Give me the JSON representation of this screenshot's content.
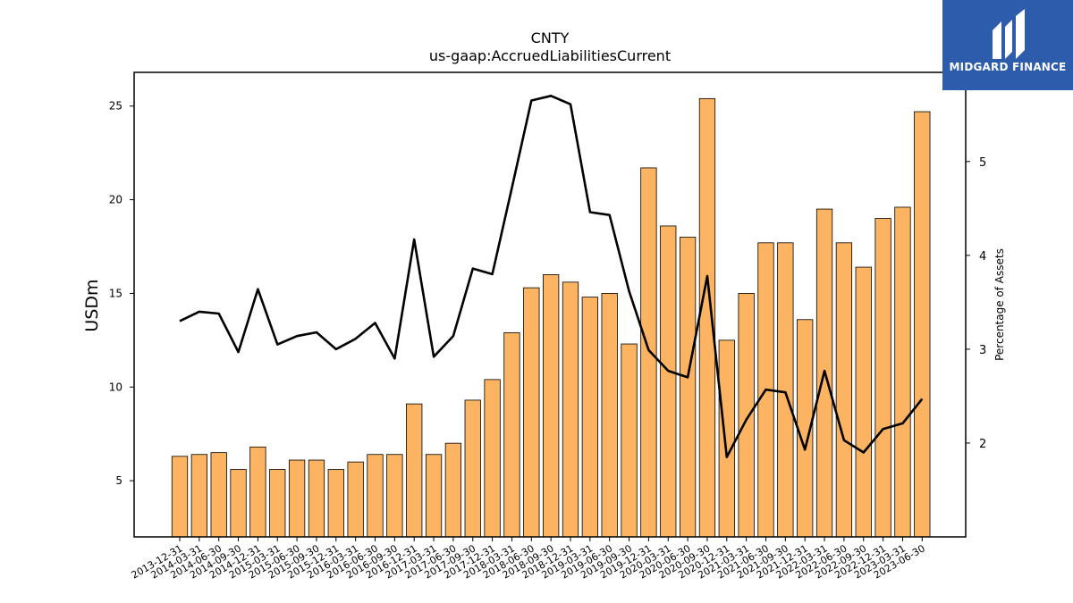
{
  "chart_data": {
    "type": "bar",
    "title": "CNTY",
    "subtitle": "us-gaap:AccruedLiabilitiesCurrent",
    "ylabel": "USDm",
    "y2label": "Percentage of Assets",
    "ylim": [
      2,
      26.8
    ],
    "y2lim": [
      1.0,
      5.95
    ],
    "yticks": [
      5,
      10,
      15,
      20,
      25
    ],
    "y2ticks": [
      2,
      3,
      4,
      5
    ],
    "bar_color": "#fdb462",
    "line_color": "#000000",
    "categories": [
      "2013-12-31",
      "2014-03-31",
      "2014-06-30",
      "2014-09-30",
      "2014-12-31",
      "2015-03-31",
      "2015-06-30",
      "2015-09-30",
      "2015-12-31",
      "2016-03-31",
      "2016-06-30",
      "2016-09-30",
      "2016-12-31",
      "2017-03-31",
      "2017-06-30",
      "2017-09-30",
      "2017-12-31",
      "2018-03-31",
      "2018-06-30",
      "2018-09-30",
      "2018-12-31",
      "2019-03-31",
      "2019-06-30",
      "2019-09-30",
      "2019-12-31",
      "2020-03-31",
      "2020-06-30",
      "2020-09-30",
      "2020-12-31",
      "2021-03-31",
      "2021-06-30",
      "2021-09-30",
      "2021-12-31",
      "2022-03-31",
      "2022-06-30",
      "2022-09-30",
      "2022-12-31",
      "2023-03-31",
      "2023-06-30"
    ],
    "series": [
      {
        "axis": "left",
        "kind": "bar",
        "values": [
          6.3,
          6.4,
          6.5,
          5.6,
          6.8,
          5.6,
          6.1,
          6.1,
          5.6,
          6.0,
          6.4,
          6.4,
          9.1,
          6.4,
          7.0,
          9.3,
          10.4,
          12.9,
          15.3,
          16.0,
          15.6,
          14.8,
          15.0,
          12.3,
          21.7,
          18.6,
          18.0,
          25.4,
          12.5,
          15.0,
          17.7,
          17.7,
          13.6,
          19.5,
          17.7,
          16.4,
          19.0,
          19.6,
          24.7
        ]
      },
      {
        "axis": "right",
        "kind": "line",
        "values": [
          3.3,
          3.4,
          3.38,
          2.97,
          3.64,
          3.05,
          3.14,
          3.18,
          3.0,
          3.11,
          3.28,
          2.9,
          4.17,
          2.92,
          3.14,
          3.86,
          3.8,
          4.72,
          5.65,
          5.7,
          5.61,
          4.46,
          4.43,
          3.62,
          2.99,
          2.77,
          2.7,
          3.78,
          1.85,
          2.25,
          2.57,
          2.54,
          1.93,
          2.77,
          2.03,
          1.9,
          2.15,
          2.21,
          2.47
        ]
      }
    ]
  },
  "logo": {
    "text": "MIDGARD FINANCE"
  }
}
